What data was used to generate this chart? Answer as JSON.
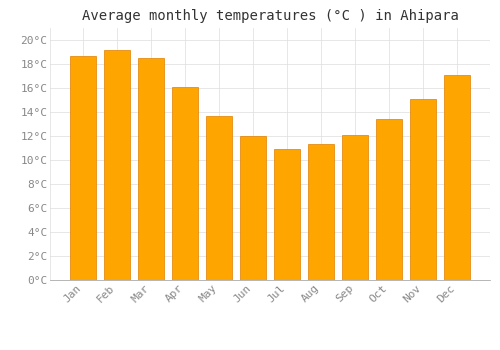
{
  "title": "Average monthly temperatures (°C ) in Ahipara",
  "months": [
    "Jan",
    "Feb",
    "Mar",
    "Apr",
    "May",
    "Jun",
    "Jul",
    "Aug",
    "Sep",
    "Oct",
    "Nov",
    "Dec"
  ],
  "temperatures": [
    18.7,
    19.2,
    18.5,
    16.1,
    13.7,
    12.0,
    10.9,
    11.3,
    12.1,
    13.4,
    15.1,
    17.1
  ],
  "bar_color": "#FFA500",
  "bar_edge_color": "#E08000",
  "background_color": "#FFFFFF",
  "plot_bg_color": "#FFFFFF",
  "grid_color": "#DDDDDD",
  "ylim": [
    0,
    21
  ],
  "ytick_step": 2,
  "title_fontsize": 10,
  "tick_fontsize": 8,
  "tick_label_color": "#888888",
  "title_color": "#333333",
  "font_family": "monospace",
  "bar_width": 0.75
}
